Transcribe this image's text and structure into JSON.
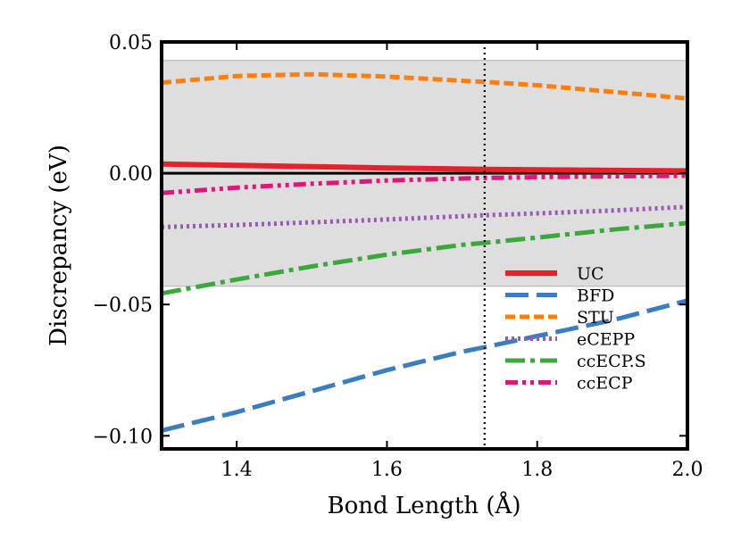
{
  "chart_data": {
    "type": "line",
    "title": "",
    "xlabel": "Bond Length (Å)",
    "ylabel": "Discrepancy (eV)",
    "xlim": [
      1.3,
      2.0
    ],
    "ylim": [
      -0.105,
      0.05
    ],
    "xticks": [
      1.4,
      1.6,
      1.8,
      2.0
    ],
    "xtick_labels": [
      "1.4",
      "1.6",
      "1.8",
      "2.0"
    ],
    "yticks": [
      0.05,
      0.0,
      -0.05,
      -0.1
    ],
    "ytick_labels": [
      "0.05",
      "0.00",
      "−0.05",
      "−0.10"
    ],
    "shaded_band": [
      -0.043,
      0.043
    ],
    "zero_line": 0.0,
    "vertical_marker": 1.73,
    "legend_position": "lower-right",
    "x": [
      1.3,
      1.4,
      1.5,
      1.6,
      1.7,
      1.73,
      1.8,
      1.9,
      2.0
    ],
    "series": [
      {
        "name": "UC",
        "color": "#e8202a",
        "style": "solid",
        "values": [
          0.0035,
          0.003,
          0.0025,
          0.002,
          0.0016,
          0.0015,
          0.0013,
          0.0011,
          0.0009
        ]
      },
      {
        "name": "BFD",
        "color": "#3a7dc0",
        "style": "longdash",
        "values": [
          -0.098,
          -0.091,
          -0.083,
          -0.075,
          -0.068,
          -0.0663,
          -0.062,
          -0.056,
          -0.0485
        ]
      },
      {
        "name": "STU",
        "color": "#ff7f0e",
        "style": "shortdash",
        "values": [
          0.0345,
          0.037,
          0.0377,
          0.0368,
          0.0352,
          0.0348,
          0.0335,
          0.031,
          0.0285
        ]
      },
      {
        "name": "eCEPP",
        "color": "#9b59b6",
        "style": "dotted",
        "values": [
          -0.0205,
          -0.0197,
          -0.0187,
          -0.0176,
          -0.0164,
          -0.016,
          -0.0153,
          -0.0142,
          -0.0128
        ]
      },
      {
        "name": "ccECP.S",
        "color": "#3ba83b",
        "style": "dashdot",
        "values": [
          -0.0458,
          -0.0405,
          -0.0355,
          -0.031,
          -0.0273,
          -0.0265,
          -0.0245,
          -0.0215,
          -0.019
        ]
      },
      {
        "name": "ccECP",
        "color": "#e0177a",
        "style": "dashdotdot",
        "values": [
          -0.0075,
          -0.0055,
          -0.004,
          -0.0028,
          -0.002,
          -0.0018,
          -0.0015,
          -0.0012,
          -0.001
        ]
      }
    ]
  }
}
